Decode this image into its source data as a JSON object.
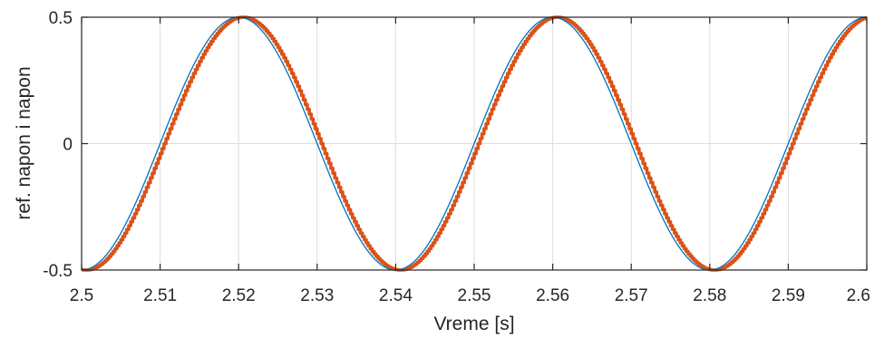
{
  "chart_data": {
    "type": "line",
    "title": "",
    "xlabel": "Vreme [s]",
    "ylabel": "ref. napon i napon",
    "xlim": [
      2.5,
      2.6
    ],
    "ylim": [
      -0.5,
      0.5
    ],
    "grid": true,
    "xticks": [
      2.5,
      2.51,
      2.52,
      2.53,
      2.54,
      2.55,
      2.56,
      2.57,
      2.58,
      2.59,
      2.6
    ],
    "xtick_labels": [
      "2.5",
      "2.51",
      "2.52",
      "2.53",
      "2.54",
      "2.55",
      "2.56",
      "2.57",
      "2.58",
      "2.59",
      "2.6"
    ],
    "yticks": [
      -0.5,
      0,
      0.5
    ],
    "ytick_labels": [
      "-0.5",
      "0",
      "0.5"
    ],
    "series": [
      {
        "color": "#0072BD",
        "line_width": "thin",
        "function": "0.5*sin(2*pi*25*t - 2*pi*25*2.5 - pi/2)",
        "amplitude": 0.5,
        "frequency_hz": 25,
        "peak_times": [
          2.52,
          2.56,
          2.6
        ],
        "trough_times": [
          2.5,
          2.54,
          2.58
        ]
      },
      {
        "color": "#D95319",
        "line_width": "thick",
        "stepped": true,
        "amplitude": 0.5,
        "frequency_hz": 25,
        "peak_times": [
          2.5205,
          2.5605,
          2.6005
        ],
        "trough_times": [
          2.5005,
          2.5405,
          2.5805
        ]
      }
    ]
  }
}
